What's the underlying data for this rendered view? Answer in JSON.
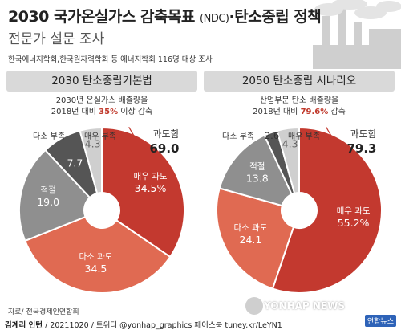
{
  "header": {
    "title_main": "2030 국가온실가스 감축목표",
    "title_ndc": "(NDC)",
    "title_rest": "·탄소중립 정책",
    "subtitle": "전문가 설문 조사",
    "survey": "한국에너지학회,한국원자력학회 등 에너지학회 116명 대상 조사"
  },
  "panels": [
    {
      "heading": "2030 탄소중립기본법",
      "sub_line1": "2030년 온실가스 배출량을",
      "sub_line2_pre": "2018년 대비 ",
      "sub_line2_bold": "35%",
      "sub_line2_post": " 이상 감축",
      "group_label": "과도함",
      "group_value": "69.0"
    },
    {
      "heading": "2050 탄소중립 시나리오",
      "sub_line1": "산업부문 탄소 배출량을",
      "sub_line2_pre": "2018년 대비 ",
      "sub_line2_bold": "79.6%",
      "sub_line2_post": " 감축",
      "group_label": "과도함",
      "group_value": "79.3"
    }
  ],
  "colors": {
    "very_excessive": "#c3392f",
    "somewhat_excessive": "#e06a52",
    "appropriate": "#8f8f8f",
    "somewhat_lacking": "#555555",
    "very_lacking": "#cfcfcf",
    "accent": "#c0392b"
  },
  "chart_data": [
    {
      "type": "pie",
      "title": "2030 탄소중립기본법",
      "categories": [
        "매우 과도",
        "다소 과도",
        "적절",
        "다소 부족",
        "매우 부족"
      ],
      "values": [
        34.5,
        34.5,
        19.0,
        7.7,
        4.3
      ],
      "labels": [
        "34.5%",
        "34.5",
        "19.0",
        "7.7",
        "4.3"
      ]
    },
    {
      "type": "pie",
      "title": "2050 탄소중립 시나리오",
      "categories": [
        "매우 과도",
        "다소 과도",
        "적절",
        "다소 부족",
        "매우 부족"
      ],
      "values": [
        55.2,
        24.1,
        13.8,
        2.6,
        4.3
      ],
      "labels": [
        "55.2%",
        "24.1",
        "13.8",
        "2.6",
        "4.3"
      ]
    }
  ],
  "source": "자료/ 전국경제인연합회",
  "footer": {
    "author": "김계리 인턴",
    "date": "20211020",
    "twitter": "트위터 @yonhap_graphics",
    "facebook": "페이스북 tuney.kr/LeYN1"
  },
  "watermark": "YONHAP NEWS",
  "brand": "연합뉴스"
}
